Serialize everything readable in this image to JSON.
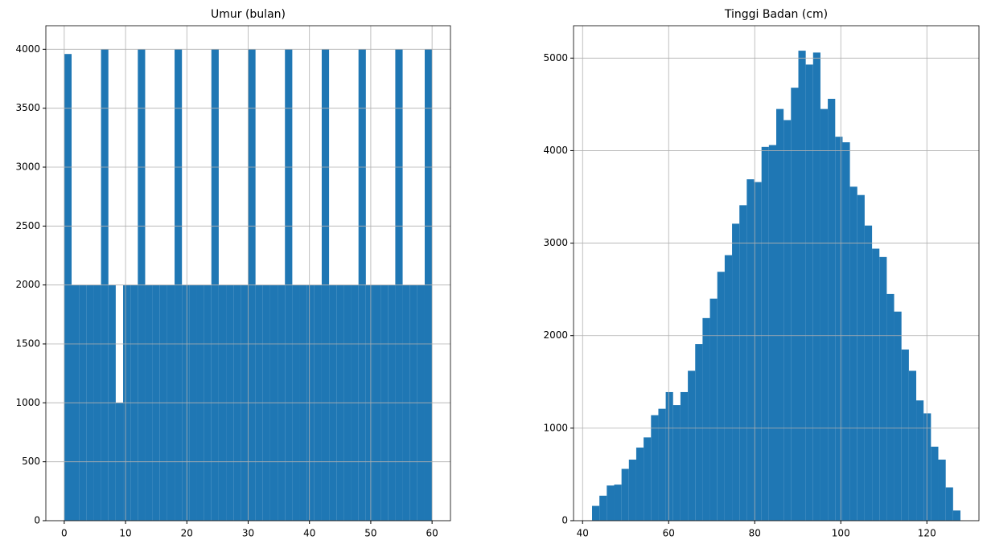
{
  "chart_data": [
    {
      "type": "histogram",
      "title": "Umur (bulan)",
      "color": "#1f77b4",
      "grid": true,
      "bins": [
        0,
        1.2,
        2.4,
        3.6,
        4.8,
        6,
        7.2,
        8.4,
        9.6,
        10.8,
        12,
        13.2,
        14.4,
        15.6,
        16.8,
        18,
        19.2,
        20.4,
        21.6,
        22.8,
        24,
        25.2,
        26.4,
        27.6,
        28.8,
        30,
        31.2,
        32.4,
        33.6,
        34.8,
        36,
        37.2,
        38.4,
        39.6,
        40.8,
        42,
        43.2,
        44.4,
        45.6,
        46.8,
        48,
        49.2,
        50.4,
        51.6,
        52.8,
        54,
        55.2,
        56.4,
        57.6,
        58.8,
        60
      ],
      "values": [
        3960,
        2000,
        2000,
        2000,
        2000,
        4000,
        2000,
        1000,
        2000,
        2000,
        4000,
        2000,
        2000,
        2000,
        2000,
        4000,
        2000,
        2000,
        2000,
        2000,
        4000,
        2000,
        2000,
        2000,
        2000,
        4000,
        2000,
        2000,
        2000,
        2000,
        4000,
        2000,
        2000,
        2000,
        2000,
        4000,
        2000,
        2000,
        2000,
        2000,
        4000,
        2000,
        2000,
        2000,
        2000,
        4000,
        2000,
        2000,
        2000,
        4000
      ],
      "xlim": [
        -3,
        63
      ],
      "xticks": [
        0,
        10,
        20,
        30,
        40,
        50,
        60
      ],
      "ylim": [
        0,
        4200
      ],
      "yticks": [
        0,
        500,
        1000,
        1500,
        2000,
        2500,
        3000,
        3500,
        4000
      ]
    },
    {
      "type": "histogram",
      "title": "Tinggi Badan (cm)",
      "color": "#1f77b4",
      "grid": true,
      "bins": [
        42.2,
        43.91,
        45.62,
        47.34,
        49.05,
        50.76,
        52.47,
        54.18,
        55.9,
        57.61,
        59.32,
        61.03,
        62.74,
        64.46,
        66.17,
        67.88,
        69.59,
        71.3,
        73.02,
        74.73,
        76.44,
        78.15,
        79.86,
        81.58,
        83.29,
        85.0,
        86.71,
        88.42,
        90.14,
        91.85,
        93.56,
        95.27,
        96.98,
        98.7,
        100.41,
        102.12,
        103.83,
        105.54,
        107.26,
        108.97,
        110.68,
        112.39,
        114.1,
        115.82,
        117.53,
        119.24,
        120.95,
        122.66,
        124.38,
        126.09,
        127.8
      ],
      "values": [
        160,
        270,
        380,
        390,
        560,
        660,
        790,
        900,
        1140,
        1210,
        1390,
        1250,
        1390,
        1620,
        1910,
        2190,
        2400,
        2690,
        2870,
        3210,
        3410,
        3690,
        3660,
        4040,
        4060,
        4450,
        4330,
        4680,
        5080,
        4930,
        5060,
        4450,
        4560,
        4150,
        4090,
        3610,
        3520,
        3190,
        2940,
        2850,
        2450,
        2260,
        1850,
        1620,
        1300,
        1160,
        800,
        660,
        360,
        110
      ],
      "xlim": [
        37.9,
        132.1
      ],
      "xticks": [
        40,
        60,
        80,
        100,
        120
      ],
      "ylim": [
        0,
        5350
      ],
      "yticks": [
        0,
        1000,
        2000,
        3000,
        4000,
        5000
      ]
    }
  ]
}
